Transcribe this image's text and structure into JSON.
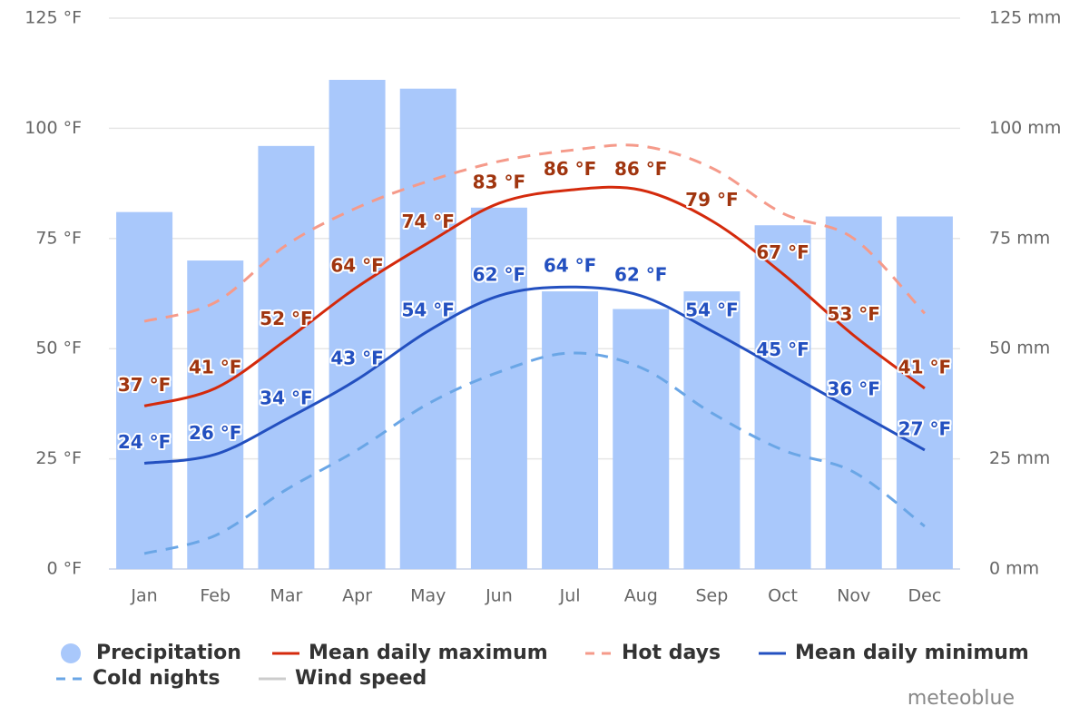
{
  "chart_data": {
    "type": "combo",
    "categories": [
      "Jan",
      "Feb",
      "Mar",
      "Apr",
      "May",
      "Jun",
      "Jul",
      "Aug",
      "Sep",
      "Oct",
      "Nov",
      "Dec"
    ],
    "ylim": [
      0,
      125
    ],
    "yticks": [
      {
        "value": 0,
        "label": "0 °F"
      },
      {
        "value": 25,
        "label": "25 °F"
      },
      {
        "value": 50,
        "label": "50 °F"
      },
      {
        "value": 75,
        "label": "75 °F"
      },
      {
        "value": 100,
        "label": "100 °F"
      },
      {
        "value": 125,
        "label": "125 °F"
      }
    ],
    "y2lim": [
      0,
      125
    ],
    "y2ticks": [
      {
        "value": 0,
        "label": "0 mm"
      },
      {
        "value": 25,
        "label": "25 mm"
      },
      {
        "value": 50,
        "label": "50 mm"
      },
      {
        "value": 75,
        "label": "75 mm"
      },
      {
        "value": 100,
        "label": "100 mm"
      },
      {
        "value": 125,
        "label": "125 mm"
      }
    ],
    "grid": true,
    "series": [
      {
        "name": "Precipitation",
        "type": "bar",
        "axis": "y2",
        "color": "#a9c8fb",
        "values": [
          81,
          70,
          96,
          111,
          109,
          82,
          63,
          59,
          63,
          78,
          80,
          80
        ]
      },
      {
        "name": "Mean daily maximum",
        "type": "line",
        "color": "#d42a0c",
        "label_color": "#a0350f",
        "values": [
          37,
          41,
          52,
          64,
          74,
          83,
          86,
          86,
          79,
          67,
          53,
          41
        ],
        "value_labels": [
          "37 °F",
          "41 °F",
          "52 °F",
          "64 °F",
          "74 °F",
          "83 °F",
          "86 °F",
          "86 °F",
          "79 °F",
          "67 °F",
          "53 °F",
          "41 °F"
        ]
      },
      {
        "name": "Hot days",
        "type": "line",
        "dashed": true,
        "color": "#f59a8a",
        "values": [
          56.2,
          60.5,
          73.5,
          82,
          88,
          92.5,
          95,
          96,
          91,
          80.7,
          75,
          58
        ]
      },
      {
        "name": "Mean daily minimum",
        "type": "line",
        "color": "#2350c0",
        "label_color": "#2350c0",
        "values": [
          24,
          26,
          34,
          43,
          54,
          62,
          64,
          62,
          54,
          45,
          36,
          27
        ],
        "value_labels": [
          "24 °F",
          "26 °F",
          "34 °F",
          "43 °F",
          "54 °F",
          "62 °F",
          "64 °F",
          "62 °F",
          "54 °F",
          "45 °F",
          "36 °F",
          "27 °F"
        ]
      },
      {
        "name": "Cold nights",
        "type": "line",
        "dashed": true,
        "color": "#6aa6e6",
        "values": [
          3.5,
          7.6,
          18,
          27,
          37.5,
          44.7,
          49,
          45.7,
          35.4,
          27,
          22,
          9.7
        ]
      },
      {
        "name": "Wind speed",
        "type": "line",
        "visible": false,
        "color": "#cccccc",
        "values": [
          null,
          null,
          null,
          null,
          null,
          null,
          null,
          null,
          null,
          null,
          null,
          null
        ]
      }
    ],
    "credit": "meteoblue"
  }
}
